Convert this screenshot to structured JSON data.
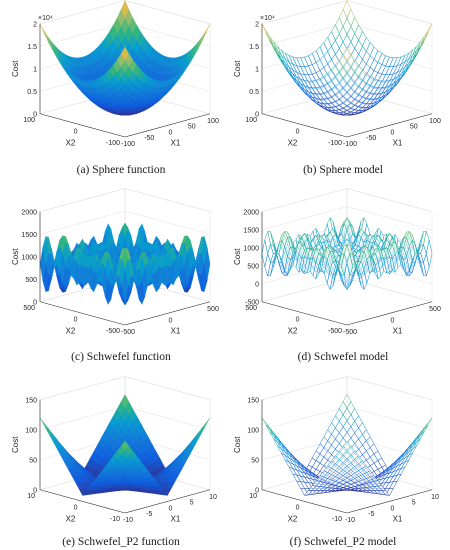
{
  "chart_data": [
    {
      "id": "a",
      "type": "surface",
      "style": "surface",
      "caption": "(a) Sphere function",
      "zlabel": "Cost",
      "xlabel": "X1",
      "ylabel": "X2",
      "xlim": [
        -100,
        100
      ],
      "ylim": [
        -100,
        100
      ],
      "zlim": [
        0,
        20000
      ],
      "xticks": [
        -100,
        -50,
        0,
        50,
        100
      ],
      "xtick_labels": [
        "-100",
        "-50",
        "0",
        "50",
        "100"
      ],
      "yticks": [
        -100,
        0,
        100
      ],
      "ytick_labels": [
        "-100",
        "0",
        "100"
      ],
      "zticks": [
        0,
        5000,
        10000,
        15000,
        20000
      ],
      "ztick_labels": [
        "0",
        "0.5",
        "1",
        "1.5",
        "2"
      ],
      "zexponent": "×10⁴"
    },
    {
      "id": "b",
      "type": "surface",
      "style": "mesh",
      "caption": "(b) Sphere model",
      "zlabel": "Cost",
      "xlabel": "X1",
      "ylabel": "X2",
      "xlim": [
        -100,
        100
      ],
      "ylim": [
        -100,
        100
      ],
      "zlim": [
        0,
        20000
      ],
      "xticks": [
        -100,
        -50,
        0,
        50,
        100
      ],
      "xtick_labels": [
        "-100",
        "-50",
        "0",
        "50",
        "100"
      ],
      "yticks": [
        -100,
        0,
        100
      ],
      "ytick_labels": [
        "-100",
        "0",
        "100"
      ],
      "zticks": [
        0,
        5000,
        10000,
        15000,
        20000
      ],
      "ztick_labels": [
        "0",
        "0.5",
        "1",
        "1.5",
        "2"
      ],
      "zexponent": "×10⁴"
    },
    {
      "id": "c",
      "type": "surface",
      "style": "surface",
      "caption": "(c) Schwefel function",
      "zlabel": "Cost",
      "xlabel": "X1",
      "ylabel": "X2",
      "xlim": [
        -500,
        500
      ],
      "ylim": [
        -500,
        500
      ],
      "zlim": [
        0,
        2000
      ],
      "xticks": [
        -500,
        0,
        500
      ],
      "xtick_labels": [
        "-500",
        "0",
        "500"
      ],
      "yticks": [
        -500,
        0,
        500
      ],
      "ytick_labels": [
        "-500",
        "0",
        "500"
      ],
      "zticks": [
        0,
        500,
        1000,
        1500,
        2000
      ],
      "ztick_labels": [
        "0",
        "500",
        "1000",
        "1500",
        "2000"
      ],
      "zexponent": ""
    },
    {
      "id": "d",
      "type": "surface",
      "style": "mesh",
      "caption": "(d) Schwefel model",
      "zlabel": "Cost",
      "xlabel": "X1",
      "ylabel": "X2",
      "xlim": [
        -500,
        500
      ],
      "ylim": [
        -500,
        500
      ],
      "zlim": [
        -500,
        2000
      ],
      "xticks": [
        -500,
        0,
        500
      ],
      "xtick_labels": [
        "-500",
        "0",
        "500"
      ],
      "yticks": [
        -500,
        0,
        500
      ],
      "ytick_labels": [
        "-500",
        "0",
        "500"
      ],
      "zticks": [
        -500,
        0,
        500,
        1000,
        1500,
        2000
      ],
      "ztick_labels": [
        "-500",
        "0",
        "500",
        "1000",
        "1500",
        "2000"
      ],
      "zexponent": ""
    },
    {
      "id": "e",
      "type": "surface",
      "style": "surface",
      "caption": "(e) Schwefel_P2 function",
      "zlabel": "Cost",
      "xlabel": "X1",
      "ylabel": "X2",
      "xlim": [
        -10,
        10
      ],
      "ylim": [
        -10,
        10
      ],
      "zlim": [
        0,
        150
      ],
      "xticks": [
        -10,
        -5,
        0,
        5,
        10
      ],
      "xtick_labels": [
        "-10",
        "-5",
        "0",
        "5",
        "10"
      ],
      "yticks": [
        -10,
        0,
        10
      ],
      "ytick_labels": [
        "-10",
        "0",
        "10"
      ],
      "zticks": [
        0,
        50,
        100,
        150
      ],
      "ztick_labels": [
        "0",
        "50",
        "100",
        "150"
      ],
      "zexponent": ""
    },
    {
      "id": "f",
      "type": "surface",
      "style": "mesh",
      "caption": "(f) Schwefel_P2 model",
      "zlabel": "Cost",
      "xlabel": "X1",
      "ylabel": "X2",
      "xlim": [
        -10,
        10
      ],
      "ylim": [
        -10,
        10
      ],
      "zlim": [
        0,
        150
      ],
      "xticks": [
        -10,
        -5,
        0,
        5,
        10
      ],
      "xtick_labels": [
        "-10",
        "-5",
        "0",
        "5",
        "10"
      ],
      "yticks": [
        -10,
        0,
        10
      ],
      "ytick_labels": [
        "-10",
        "0",
        "10"
      ],
      "zticks": [
        0,
        50,
        100,
        150
      ],
      "ztick_labels": [
        "0",
        "50",
        "100",
        "150"
      ],
      "zexponent": ""
    }
  ]
}
